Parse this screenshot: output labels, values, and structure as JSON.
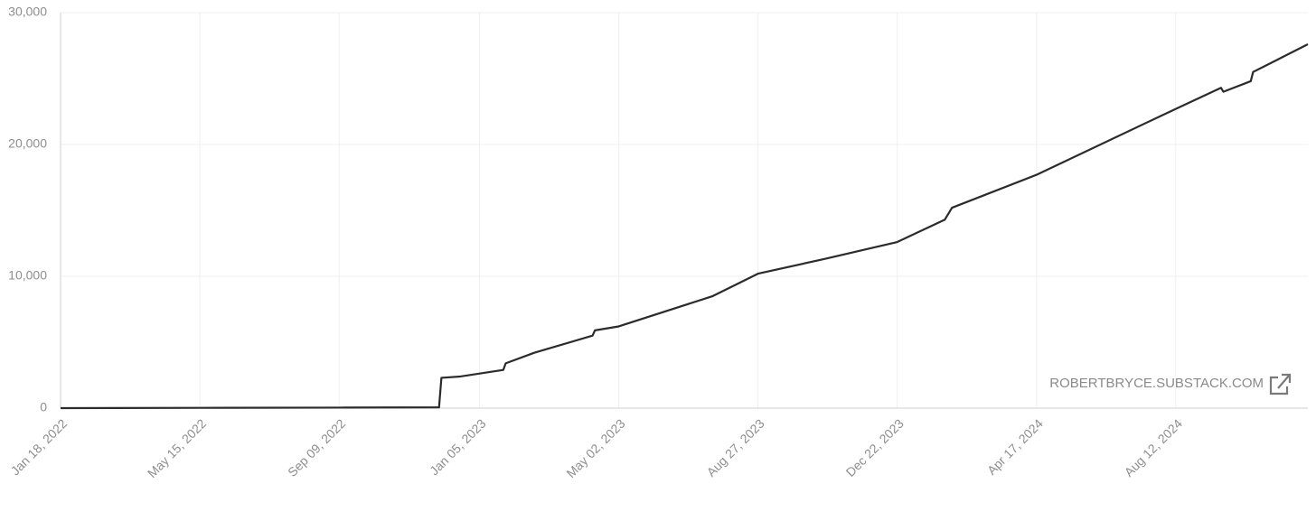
{
  "chart_data": {
    "type": "line",
    "watermark": "ROBERTBRYCE.SUBSTACK.COM",
    "x": [
      "Jan 18, 2022",
      "May 15, 2022",
      "Sep 09, 2022",
      "Dec 02, 2022",
      "Dec 04, 2022",
      "Dec 20, 2022",
      "Jan 25, 2023",
      "Jan 27, 2023",
      "Feb 20, 2023",
      "Apr 10, 2023",
      "Apr 12, 2023",
      "May 02, 2023",
      "Jul 20, 2023",
      "Aug 27, 2023",
      "Oct 21, 2023",
      "Dec 22, 2023",
      "Jan 31, 2024",
      "Feb 06, 2024",
      "Apr 17, 2024",
      "Aug 12, 2024",
      "Sep 19, 2024",
      "Sep 21, 2024",
      "Oct 14, 2024",
      "Oct 16, 2024",
      "Dec 01, 2024"
    ],
    "series": [
      {
        "color": "#2b2b2b",
        "values": [
          0,
          20,
          40,
          60,
          2300,
          2400,
          2900,
          3400,
          4200,
          5500,
          5900,
          6200,
          8500,
          10200,
          11300,
          12600,
          14300,
          15200,
          17700,
          22700,
          24300,
          24000,
          24800,
          25500,
          27600
        ]
      }
    ],
    "xlim": [
      "Jan 18, 2022",
      "Dec 01, 2024"
    ],
    "xticks": [
      "Jan 18, 2022",
      "May 15, 2022",
      "Sep 09, 2022",
      "Jan 05, 2023",
      "May 02, 2023",
      "Aug 27, 2023",
      "Dec 22, 2023",
      "Apr 17, 2024",
      "Aug 12, 2024"
    ],
    "ylim": [
      0,
      30000
    ],
    "yticks": [
      0,
      {
        "value": 10000,
        "label": "10,000"
      },
      {
        "value": 20000,
        "label": "20,000"
      },
      {
        "value": 30000,
        "label": "30,000"
      }
    ],
    "grid": true
  }
}
